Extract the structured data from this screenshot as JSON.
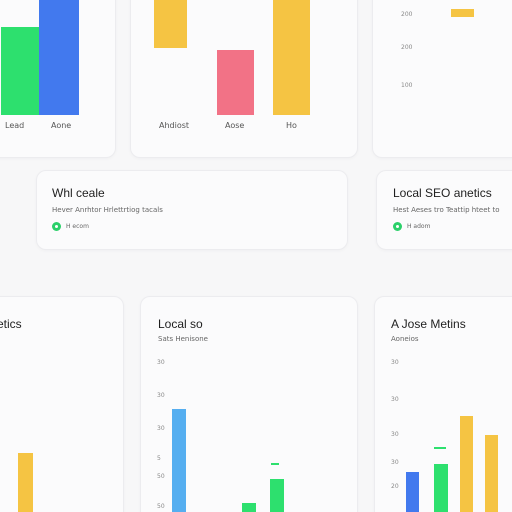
{
  "colors": {
    "green": "#2de06e",
    "blue": "#4279ee",
    "yellow": "#f5c443",
    "red": "#f27286",
    "sky": "#55aef0",
    "status": "#2bd06a"
  },
  "top_left_chart": {
    "x_labels": [
      "Lead",
      "Aone"
    ]
  },
  "top_mid_chart": {
    "x_labels": [
      "Ahdiost",
      "Aose",
      "Ho"
    ]
  },
  "top_right_chart": {
    "ticks": [
      "200",
      "200",
      "100"
    ]
  },
  "mid_left_card": {
    "title": "Whl ceale",
    "subtitle": "Hever Anrhtor Hrlettrtiog tacals",
    "status": "H ecom"
  },
  "mid_right_card": {
    "title": "Local SEO anetics",
    "subtitle": "Hest Aeses tro Teattip hteet to",
    "status": "H adom"
  },
  "bottom_left_card": {
    "title": "etics"
  },
  "bottom_mid_card": {
    "title": "Local so",
    "subtitle": "Sats Henisone",
    "ticks": [
      "30",
      "30",
      "30",
      "5",
      "50",
      "50"
    ]
  },
  "bottom_right_card": {
    "title": "A Jose Metins",
    "subtitle": "Aoneios",
    "ticks": [
      "30",
      "30",
      "30",
      "30",
      "20"
    ]
  }
}
